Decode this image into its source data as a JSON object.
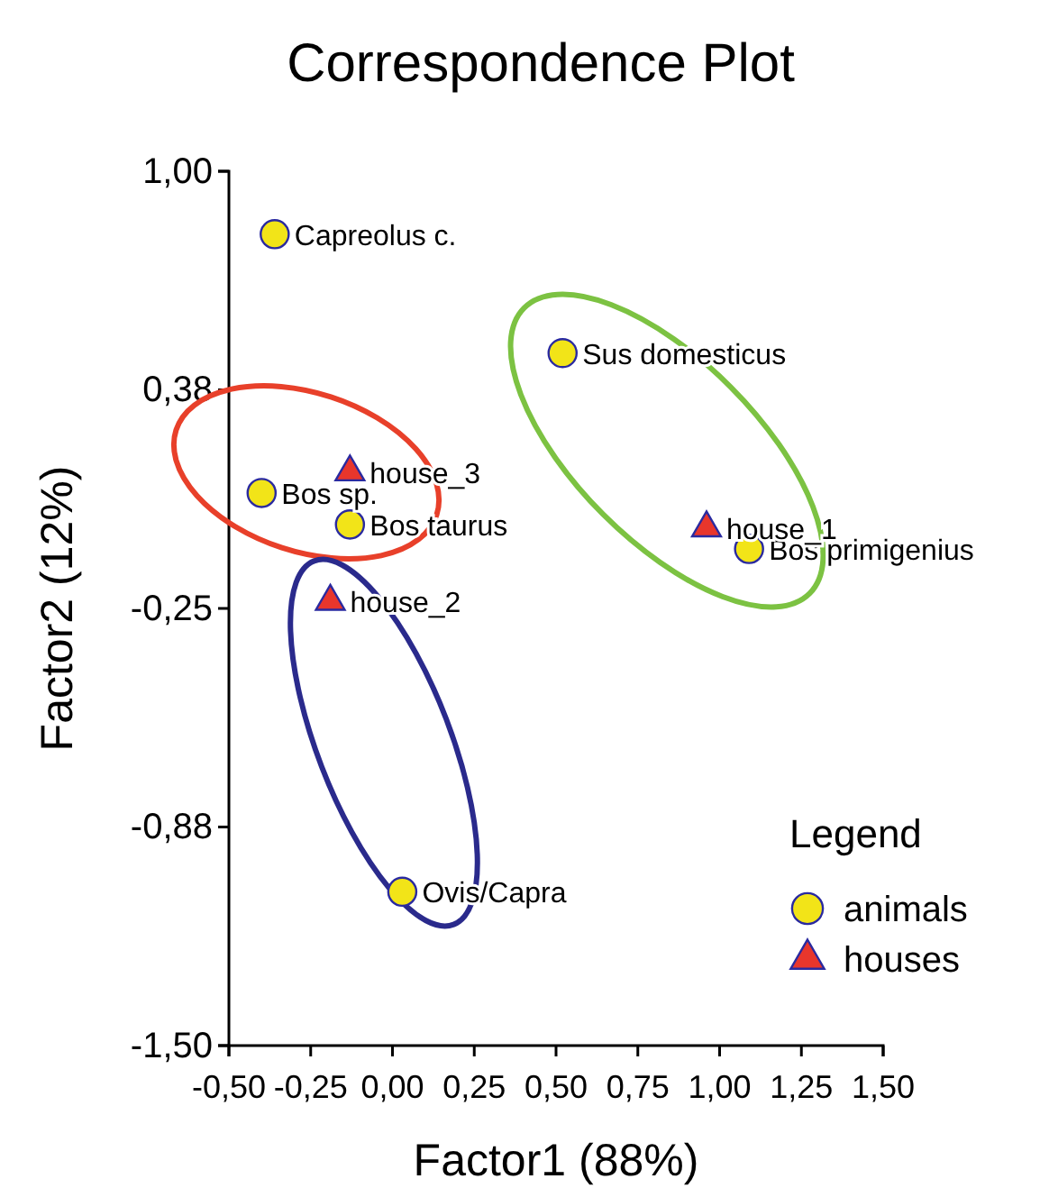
{
  "chart_data": {
    "type": "scatter",
    "title": "Correspondence Plot",
    "xlabel": "Factor1 (88%)",
    "ylabel": "Factor2 (12%)",
    "legend_title": "Legend",
    "legend": "bottom right",
    "grid": false,
    "xlim": [
      -0.5,
      1.5
    ],
    "xticks": [
      {
        "value": -0.5,
        "label": "-0,50"
      },
      {
        "value": -0.25,
        "label": "-0,25"
      },
      {
        "value": 0,
        "label": "0,00"
      },
      {
        "value": 0.25,
        "label": "0,25"
      },
      {
        "value": 0.5,
        "label": "0,50"
      },
      {
        "value": 0.75,
        "label": "0,75"
      },
      {
        "value": 1,
        "label": "1,00"
      },
      {
        "value": 1.25,
        "label": "1,25"
      },
      {
        "value": 1.5,
        "label": "1,50"
      }
    ],
    "ylim": [
      -1.5,
      1
    ],
    "yticks": [
      {
        "value": -1.5,
        "label": "-1,50"
      },
      {
        "value": -0.875,
        "label": "-0,88"
      },
      {
        "value": -0.25,
        "label": "-0,25"
      },
      {
        "value": 0.375,
        "label": "0,38"
      },
      {
        "value": 1,
        "label": "1,00"
      }
    ],
    "series": [
      {
        "name": "animals",
        "color": "#f2e418",
        "marker": "circle",
        "x": [
          -0.36,
          0.52,
          -0.4,
          -0.13,
          1.09,
          0.03
        ],
        "values": [
          0.82,
          0.48,
          0.08,
          -0.01,
          -0.08,
          -1.06
        ]
      },
      {
        "name": "houses",
        "color": "#e8362c",
        "marker": "triangle",
        "x": [
          -0.13,
          0.96,
          -0.19
        ],
        "values": [
          0.14,
          -0.02,
          -0.23
        ]
      }
    ],
    "annotations": [
      {
        "text": "Capreolus c.",
        "x": -0.36,
        "y": 0.82
      },
      {
        "text": "Sus domesticus",
        "x": 0.52,
        "y": 0.48
      },
      {
        "text": "Bos sp.",
        "x": -0.4,
        "y": 0.08
      },
      {
        "text": "Bos taurus",
        "x": -0.13,
        "y": -0.01
      },
      {
        "text": "Bos primigenius",
        "x": 1.09,
        "y": -0.08
      },
      {
        "text": "Ovis/Capra",
        "x": 0.03,
        "y": -1.06
      },
      {
        "text": "house_3",
        "x": -0.13,
        "y": 0.14
      },
      {
        "text": "house_1",
        "x": 0.96,
        "y": -0.02
      },
      {
        "text": "house_2",
        "x": -0.19,
        "y": -0.23
      }
    ]
  }
}
